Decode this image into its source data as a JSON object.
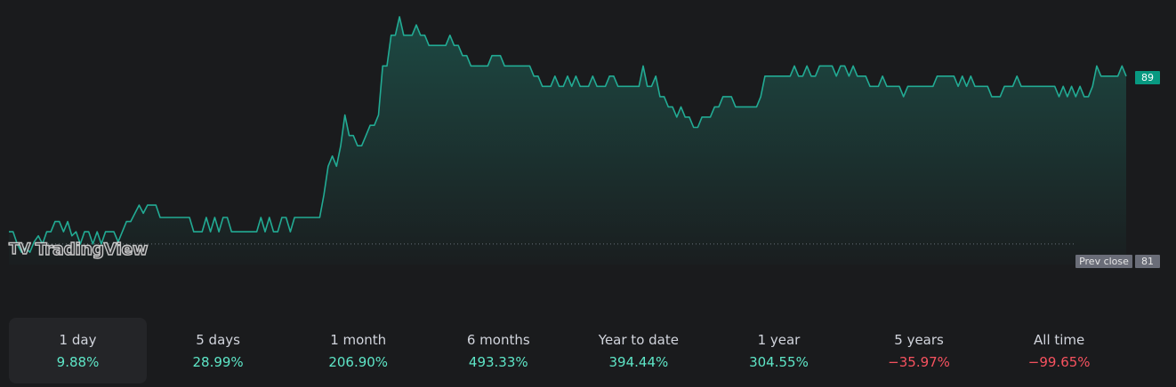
{
  "chart_data": {
    "type": "area",
    "series": [
      {
        "color": "#22ab94",
        "values": [
          81.6,
          81.6,
          81,
          80.6,
          80.8,
          80.6,
          81.1,
          81.4,
          81,
          81.6,
          81.6,
          82.1,
          82.1,
          81.6,
          82.1,
          81.4,
          81.6,
          81,
          81.6,
          81.6,
          81,
          81.6,
          81,
          81.6,
          81.6,
          81.6,
          81.1,
          81.6,
          82.1,
          82.1,
          82.5,
          82.9,
          82.5,
          82.9,
          82.9,
          82.9,
          82.3,
          82.3,
          82.3,
          82.3,
          82.3,
          82.3,
          82.3,
          82.3,
          81.6,
          81.6,
          81.6,
          82.3,
          81.6,
          82.3,
          81.6,
          82.3,
          82.3,
          81.6,
          81.6,
          81.6,
          81.6,
          81.6,
          81.6,
          81.6,
          82.3,
          81.6,
          82.3,
          81.6,
          81.6,
          82.3,
          82.3,
          81.6,
          82.3,
          82.3,
          82.3,
          82.3,
          82.3,
          82.3,
          82.3,
          83.4,
          84.8,
          85.3,
          84.8,
          85.8,
          87.3,
          86.3,
          86.3,
          85.8,
          85.8,
          86.3,
          86.8,
          86.8,
          87.3,
          89.7,
          89.7,
          91.2,
          91.2,
          92.1,
          91.2,
          91.2,
          91.2,
          91.7,
          91.2,
          91.2,
          90.7,
          90.7,
          90.7,
          90.7,
          90.7,
          91.2,
          90.7,
          90.7,
          90.2,
          90.2,
          89.7,
          89.7,
          89.7,
          89.7,
          89.7,
          90.2,
          90.2,
          90.2,
          89.7,
          89.7,
          89.7,
          89.7,
          89.7,
          89.7,
          89.7,
          89.2,
          89.2,
          88.7,
          88.7,
          88.7,
          89.2,
          88.7,
          88.7,
          89.2,
          88.7,
          89.2,
          88.7,
          88.7,
          88.7,
          89.2,
          88.7,
          88.7,
          88.7,
          89.2,
          89.2,
          88.7,
          88.7,
          88.7,
          88.7,
          88.7,
          88.7,
          89.7,
          88.7,
          88.7,
          89.2,
          88.2,
          88.2,
          87.7,
          87.7,
          87.2,
          87.7,
          87.2,
          87.2,
          86.7,
          86.7,
          87.2,
          87.2,
          87.2,
          87.7,
          87.7,
          88.2,
          88.2,
          88.2,
          87.7,
          87.7,
          87.7,
          87.7,
          87.7,
          87.7,
          88.2,
          89.2,
          89.2,
          89.2,
          89.2,
          89.2,
          89.2,
          89.2,
          89.7,
          89.2,
          89.2,
          89.7,
          89.2,
          89.2,
          89.7,
          89.7,
          89.7,
          89.7,
          89.2,
          89.7,
          89.7,
          89.2,
          89.7,
          89.2,
          89.2,
          89.2,
          88.7,
          88.7,
          88.7,
          89.2,
          88.7,
          88.7,
          88.7,
          88.7,
          88.2,
          88.7,
          88.7,
          88.7,
          88.7,
          88.7,
          88.7,
          88.7,
          89.2,
          89.2,
          89.2,
          89.2,
          89.2,
          88.7,
          89.2,
          88.7,
          89.2,
          88.7,
          88.7,
          88.7,
          88.7,
          88.2,
          88.2,
          88.2,
          88.7,
          88.7,
          88.7,
          89.2,
          88.7,
          88.7,
          88.7,
          88.7,
          88.7,
          88.7,
          88.7,
          88.7,
          88.7,
          88.2,
          88.7,
          88.2,
          88.7,
          88.2,
          88.7,
          88.2,
          88.2,
          88.7,
          89.7,
          89.2,
          89.2,
          89.2,
          89.2,
          89.2,
          89.7,
          89.2
        ]
      }
    ],
    "last_value": "89",
    "prev_close": {
      "label": "Prev close",
      "value": "81"
    },
    "ylim": [
      80,
      92.4
    ],
    "grid": false,
    "legend": "none"
  },
  "watermark": {
    "brand": "TradingView",
    "logo_text": "TV"
  },
  "periods": [
    {
      "label": "1 day",
      "value": "9.88%",
      "color": "#5ee6c7",
      "active": true
    },
    {
      "label": "5 days",
      "value": "28.99%",
      "color": "#5ee6c7",
      "active": false
    },
    {
      "label": "1 month",
      "value": "206.90%",
      "color": "#5ee6c7",
      "active": false
    },
    {
      "label": "6 months",
      "value": "493.33%",
      "color": "#5ee6c7",
      "active": false
    },
    {
      "label": "Year to date",
      "value": "394.44%",
      "color": "#5ee6c7",
      "active": false
    },
    {
      "label": "1 year",
      "value": "304.55%",
      "color": "#5ee6c7",
      "active": false
    },
    {
      "label": "5 years",
      "value": "−35.97%",
      "color": "#f7525f",
      "active": false
    },
    {
      "label": "All time",
      "value": "−99.65%",
      "color": "#f7525f",
      "active": false
    }
  ],
  "colors": {
    "background": "#1a1b1d",
    "line": "#22ab94",
    "positive": "#5ee6c7",
    "negative": "#f7525f",
    "prev_close": "#6a6d78"
  }
}
